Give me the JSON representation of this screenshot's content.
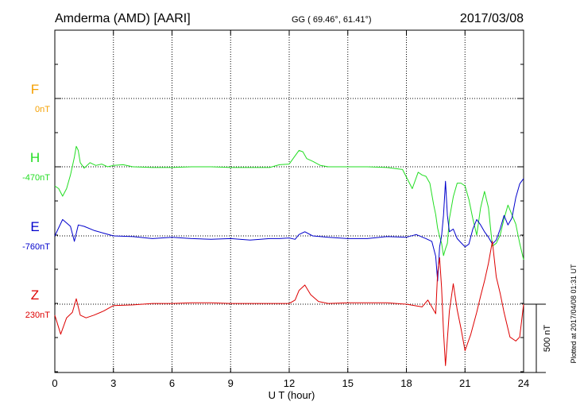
{
  "header": {
    "station": "Amderma (AMD)  [AARI]",
    "coords": "GG ( 69.46°,  61.41°)",
    "date": "2017/03/08"
  },
  "footer": {
    "xlabel": "U T (hour)",
    "plotted": "Plotted at 2017/04/08 01:31  UT",
    "scale_label": "500 nT"
  },
  "chart_data": {
    "type": "line",
    "xlim": [
      0,
      24
    ],
    "x_ticks": [
      "0",
      "3",
      "6",
      "9",
      "12",
      "15",
      "18",
      "21",
      "24"
    ],
    "grid": true,
    "y_unit": "nT",
    "scale_bar_nT": 500,
    "series": [
      {
        "name": "F",
        "baseline_label": "0nT",
        "color": "#f5a000",
        "x": [],
        "values": []
      },
      {
        "name": "H",
        "baseline_label": "-470nT",
        "color": "#22dd22",
        "x": [
          0,
          0.2,
          0.4,
          0.6,
          0.8,
          1.0,
          1.1,
          1.2,
          1.3,
          1.5,
          1.8,
          2.1,
          2.4,
          2.7,
          3.0,
          3.5,
          4,
          5,
          6,
          7,
          8,
          9,
          10,
          11,
          11.5,
          12.0,
          12.3,
          12.5,
          12.7,
          12.9,
          13.2,
          13.6,
          14,
          15,
          16,
          17,
          17.8,
          18.3,
          18.6,
          18.8,
          19.0,
          19.2,
          19.4,
          19.5,
          19.6,
          19.7,
          19.8,
          19.9,
          20.0,
          20.1,
          20.2,
          20.4,
          20.6,
          20.8,
          21.0,
          21.2,
          21.4,
          21.6,
          21.8,
          22.0,
          22.2,
          22.4,
          22.6,
          22.8,
          23.0,
          23.2,
          23.4,
          23.6,
          23.8,
          24.0
        ],
        "values": [
          -140,
          -160,
          -215,
          -160,
          -60,
          70,
          150,
          120,
          30,
          -10,
          30,
          10,
          20,
          0,
          10,
          15,
          0,
          -5,
          -5,
          0,
          0,
          -5,
          -5,
          -5,
          15,
          20,
          80,
          120,
          110,
          60,
          40,
          10,
          0,
          0,
          0,
          -5,
          -20,
          -160,
          -40,
          -60,
          -70,
          -120,
          -280,
          -350,
          -450,
          -510,
          -560,
          -650,
          -600,
          -560,
          -380,
          -220,
          -120,
          -120,
          -140,
          -240,
          -380,
          -500,
          -300,
          -180,
          -300,
          -580,
          -560,
          -500,
          -380,
          -280,
          -350,
          -420,
          -560,
          -680
        ]
      },
      {
        "name": "E",
        "baseline_label": "-760nT",
        "color": "#0000cc",
        "x": [
          0,
          0.4,
          0.8,
          1.0,
          1.2,
          1.5,
          2.0,
          2.5,
          3,
          4,
          5,
          6,
          7,
          8,
          9,
          10,
          11,
          11.5,
          12.0,
          12.3,
          12.5,
          12.8,
          13.2,
          14,
          15,
          16,
          17,
          18,
          18.5,
          19.0,
          19.3,
          19.5,
          19.6,
          19.7,
          19.8,
          19.9,
          20.0,
          20.1,
          20.2,
          20.4,
          20.6,
          20.8,
          21.0,
          21.2,
          21.4,
          21.6,
          21.8,
          22.0,
          22.2,
          22.4,
          22.6,
          22.8,
          23.0,
          23.2,
          23.4,
          23.6,
          23.8,
          24.0
        ],
        "values": [
          0,
          120,
          70,
          -40,
          80,
          70,
          40,
          20,
          0,
          -5,
          -20,
          -10,
          -20,
          -25,
          -20,
          -30,
          -20,
          -20,
          -15,
          -25,
          10,
          30,
          0,
          -10,
          -20,
          -20,
          -5,
          -10,
          10,
          -20,
          -40,
          -150,
          -330,
          -80,
          0,
          150,
          400,
          150,
          30,
          50,
          -20,
          -50,
          -80,
          -60,
          50,
          120,
          80,
          30,
          -10,
          -60,
          -30,
          50,
          150,
          80,
          130,
          280,
          380,
          420
        ]
      },
      {
        "name": "Z",
        "baseline_label": "230nT",
        "color": "#dd0000",
        "x": [
          0,
          0.3,
          0.6,
          0.9,
          1.1,
          1.3,
          1.6,
          2.0,
          2.5,
          3,
          4,
          5,
          6,
          7,
          8,
          9,
          10,
          11,
          12.0,
          12.3,
          12.5,
          12.8,
          13.1,
          13.5,
          14,
          15,
          16,
          17,
          18,
          18.8,
          19.1,
          19.3,
          19.5,
          19.6,
          19.7,
          19.8,
          19.9,
          20.0,
          20.2,
          20.4,
          20.6,
          20.8,
          21.0,
          21.3,
          21.6,
          21.8,
          22.0,
          22.2,
          22.4,
          22.6,
          22.8,
          23.0,
          23.3,
          23.6,
          23.8,
          24.0
        ],
        "values": [
          -80,
          -220,
          -100,
          -60,
          40,
          -80,
          -100,
          -80,
          -50,
          -10,
          -5,
          5,
          5,
          10,
          10,
          5,
          5,
          5,
          5,
          30,
          100,
          140,
          70,
          20,
          5,
          10,
          10,
          10,
          0,
          -20,
          30,
          -20,
          -70,
          230,
          340,
          120,
          -200,
          -450,
          -50,
          150,
          -40,
          -180,
          -340,
          -220,
          -60,
          60,
          170,
          300,
          460,
          200,
          80,
          -60,
          -240,
          -270,
          -240,
          0
        ]
      }
    ]
  }
}
